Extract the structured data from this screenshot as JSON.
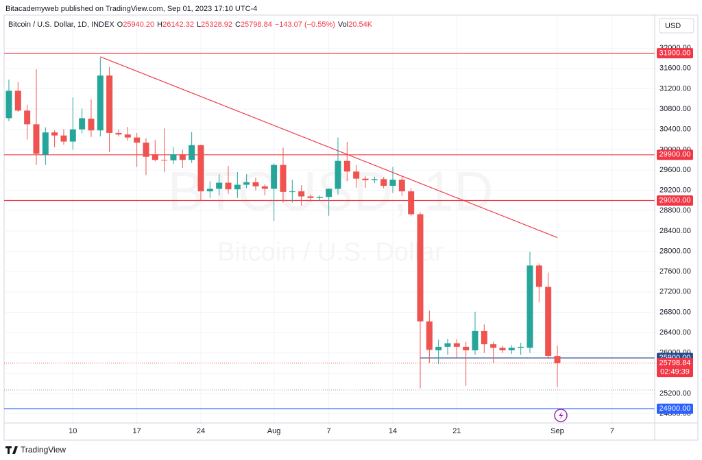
{
  "publisher": "Bitacademyweb published on TradingView.com, Sep 01, 2023 17:10 UTC-4",
  "currency": "USD",
  "branding": "TradingView",
  "chart_data": {
    "type": "candlestick",
    "legend": {
      "symbol": "Bitcoin / U.S. Dollar, 1D, INDEX",
      "open_label": "O",
      "open": "25940.20",
      "high_label": "H",
      "high": "26142.32",
      "low_label": "L",
      "low": "25328.92",
      "close_label": "C",
      "close": "25798.84",
      "change": "−143.07 (−0.55%)",
      "volume_label": "Vol",
      "volume": "20.54K"
    },
    "watermark": {
      "symbol": "BTCUSD, 1D",
      "description": "Bitcoin / U.S. Dollar"
    },
    "up_color": "#26a69a",
    "down_color": "#ef5350",
    "grid": true,
    "categories": [
      null,
      null,
      null,
      null,
      null,
      null,
      null,
      "10",
      null,
      null,
      null,
      null,
      null,
      null,
      "17",
      null,
      null,
      null,
      null,
      null,
      null,
      "24",
      null,
      null,
      null,
      null,
      null,
      null,
      null,
      "Aug",
      null,
      null,
      null,
      null,
      null,
      "7",
      null,
      null,
      null,
      null,
      null,
      null,
      "14",
      null,
      null,
      null,
      null,
      null,
      null,
      "21",
      null,
      null,
      null,
      null,
      null,
      null,
      null,
      null,
      null,
      null,
      "Sep",
      null,
      null,
      null,
      null,
      null,
      "7",
      null,
      null,
      null,
      null
    ],
    "open": [
      30620,
      31160,
      30770,
      30500,
      29900,
      30340,
      30280,
      30160,
      30400,
      30610,
      30380,
      31460,
      30330,
      30300,
      30240,
      30140,
      29910,
      29800,
      29790,
      29910,
      29800,
      30090,
      29180,
      29230,
      29350,
      29220,
      29310,
      29360,
      29280,
      29230,
      29700,
      29170,
      29180,
      29080,
      29050,
      29070,
      29230,
      29780,
      29570,
      29430,
      29400,
      29420,
      29290,
      29410,
      29180,
      28730,
      26620,
      26050,
      26120,
      26190,
      26120,
      26050,
      26430,
      26170,
      26100,
      26050,
      26100,
      26100,
      27720,
      27300,
      25940.2,
      null,
      null,
      null,
      null,
      null,
      null,
      null,
      null,
      null,
      null
    ],
    "high": [
      31380,
      31330,
      30880,
      31580,
      30440,
      30380,
      30400,
      31030,
      30810,
      30990,
      31810,
      31630,
      30400,
      30450,
      30330,
      30230,
      30190,
      30420,
      30050,
      30000,
      30350,
      30100,
      29380,
      29520,
      29680,
      29560,
      29520,
      29450,
      29320,
      29730,
      30040,
      29410,
      29300,
      29120,
      29100,
      29240,
      30240,
      30150,
      29700,
      29480,
      29470,
      29460,
      29660,
      29480,
      29240,
      28770,
      26830,
      26260,
      26280,
      26270,
      26220,
      26810,
      26560,
      26220,
      26140,
      26150,
      26200,
      27990,
      27760,
      27580,
      26142.32,
      null,
      null,
      null,
      null,
      null,
      null,
      null,
      null,
      null,
      null
    ],
    "low": [
      30560,
      30740,
      30200,
      29700,
      29700,
      30050,
      30100,
      30000,
      30320,
      30250,
      30260,
      29950,
      30260,
      30180,
      29660,
      29500,
      29770,
      29560,
      29720,
      29640,
      29740,
      29000,
      29050,
      29100,
      29130,
      29050,
      29240,
      29200,
      29100,
      28600,
      28960,
      28960,
      28900,
      28980,
      28990,
      28700,
      29110,
      29380,
      29250,
      29250,
      29340,
      29240,
      29150,
      29090,
      28700,
      25300,
      25800,
      25780,
      25960,
      25890,
      25350,
      25960,
      26000,
      25800,
      26000,
      25980,
      25960,
      26000,
      27000,
      25880,
      25328.92,
      null,
      null,
      null,
      null,
      null,
      null,
      null,
      null,
      null,
      null
    ],
    "close": [
      31160,
      30770,
      30500,
      29920,
      30340,
      30280,
      30160,
      30400,
      30620,
      30380,
      31460,
      30330,
      30300,
      30240,
      30140,
      29860,
      29800,
      29790,
      29910,
      29800,
      30090,
      29180,
      29230,
      29350,
      29220,
      29310,
      29360,
      29280,
      29230,
      29700,
      29170,
      29180,
      29080,
      29050,
      29070,
      29230,
      29780,
      29570,
      29430,
      29400,
      29420,
      29290,
      29410,
      29180,
      28730,
      26620,
      26060,
      26120,
      26190,
      26120,
      26050,
      26430,
      26170,
      26100,
      26050,
      26100,
      26120,
      27720,
      27300,
      25940,
      25798.84,
      null,
      null,
      null,
      null,
      null,
      null,
      null,
      null,
      null,
      null
    ],
    "ylim": [
      24620,
      32340
    ],
    "yticks": [
      {
        "value": 24800,
        "label": "24800.00"
      },
      {
        "value": 25200,
        "label": "25200.00"
      },
      {
        "value": 25600,
        "label": "25600.00"
      },
      {
        "value": 26000,
        "label": "26000.00"
      },
      {
        "value": 26400,
        "label": "26400.00"
      },
      {
        "value": 26800,
        "label": "26800.00"
      },
      {
        "value": 27200,
        "label": "27200.00"
      },
      {
        "value": 27600,
        "label": "27600.00"
      },
      {
        "value": 28000,
        "label": "28000.00"
      },
      {
        "value": 28400,
        "label": "28400.00"
      },
      {
        "value": 28800,
        "label": "28800.00"
      },
      {
        "value": 29200,
        "label": "29200.00"
      },
      {
        "value": 29600,
        "label": "29600.00"
      },
      {
        "value": 30000,
        "label": "30000.00"
      },
      {
        "value": 30400,
        "label": "30400.00"
      },
      {
        "value": 30800,
        "label": "30800.00"
      },
      {
        "value": 31200,
        "label": "31200.00"
      },
      {
        "value": 31600,
        "label": "31600.00"
      },
      {
        "value": 32000,
        "label": "32000.00"
      }
    ],
    "levels": [
      {
        "value": 31900,
        "label": "31900.00",
        "color": "#f23645",
        "from": 0
      },
      {
        "value": 29900,
        "label": "29900.00",
        "color": "#f23645",
        "from": 0
      },
      {
        "value": 29000,
        "label": "29000.00",
        "color": "#f23645",
        "from": 0
      },
      {
        "value": 25900,
        "label": "25900.00",
        "color": "#2a4b8d",
        "from": 45
      },
      {
        "value": 24900,
        "label": "24900.00",
        "color": "#2962ff",
        "from": 0
      }
    ],
    "dotted_levels": [
      25270
    ],
    "last_price": {
      "value": 25798.84,
      "label": "25798.84",
      "countdown": "02:49:39",
      "color": "#f23645"
    },
    "trend_line": {
      "from_category": 10,
      "from_value": 31830,
      "to_category": 60,
      "to_value": 28270,
      "color": "#f23645"
    }
  }
}
